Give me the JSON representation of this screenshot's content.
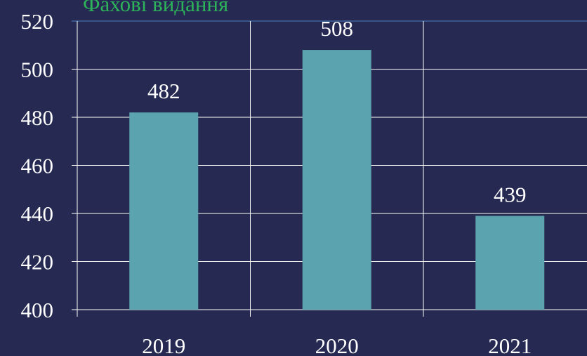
{
  "chart_data": {
    "type": "bar",
    "title": "Фахові видання",
    "categories": [
      "2019",
      "2020",
      "2021"
    ],
    "values": [
      482,
      508,
      439
    ],
    "color": "#5ba3ae",
    "ylim": [
      400,
      520
    ],
    "yticks": [
      400,
      420,
      440,
      460,
      480,
      500,
      520
    ],
    "grid": true
  }
}
